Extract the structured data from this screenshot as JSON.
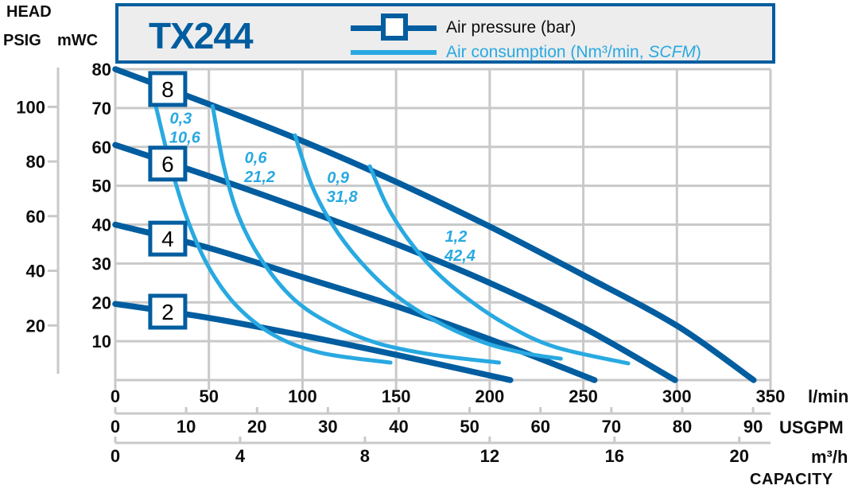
{
  "header": {
    "head": "HEAD",
    "psig": "PSIG",
    "mwc": "mWC"
  },
  "legend": {
    "model": "TX244",
    "pressure_label": "Air pressure (bar)",
    "consumption_pre": "Air consumption (Nm³/min, ",
    "consumption_italic": "SCFM",
    "consumption_post": ")"
  },
  "capacity_axis": {
    "lmin_unit": "l/min",
    "usgpm_unit": "USGPM",
    "m3h_unit": "m³/h",
    "title": "CAPACITY"
  },
  "colors": {
    "dark_blue": "#005d9f",
    "light_blue": "#29a9e1",
    "grid": "#c9c9c9",
    "text": "#0d0d0d",
    "legend_bg": "#ededed"
  },
  "chart_data": {
    "type": "line",
    "title": "TX244",
    "xlabel": "CAPACITY",
    "ylabel": "HEAD",
    "axis": {
      "xlim_lmin": [
        0,
        350
      ],
      "ylim_mwc": [
        0,
        80
      ],
      "lmin_ticks": [
        0,
        50,
        100,
        150,
        200,
        250,
        300,
        350
      ],
      "usgpm_ticks": [
        0,
        10,
        20,
        30,
        40,
        50,
        60,
        70,
        80,
        90
      ],
      "m3h_ticks": [
        0,
        4,
        8,
        12,
        16,
        20
      ],
      "mwc_ticks": [
        80,
        70,
        60,
        50,
        40,
        30,
        20,
        10
      ],
      "psig_ticks": [
        100,
        80,
        60,
        40,
        20
      ],
      "grid": true
    },
    "pressure_series": [
      {
        "bar": 8,
        "label": "8",
        "box_pos": [
          28,
          74.9
        ],
        "points": [
          [
            0,
            80
          ],
          [
            50,
            71
          ],
          [
            100,
            61.5
          ],
          [
            150,
            51
          ],
          [
            200,
            39.5
          ],
          [
            250,
            27
          ],
          [
            300,
            14
          ],
          [
            341,
            0
          ]
        ]
      },
      {
        "bar": 6,
        "label": "6",
        "box_pos": [
          28,
          55.7
        ],
        "points": [
          [
            0,
            60.5
          ],
          [
            50,
            52.5
          ],
          [
            100,
            44
          ],
          [
            150,
            35
          ],
          [
            200,
            25
          ],
          [
            250,
            13.5
          ],
          [
            299,
            0
          ]
        ]
      },
      {
        "bar": 4,
        "label": "4",
        "box_pos": [
          28,
          36.4
        ],
        "points": [
          [
            0,
            40
          ],
          [
            50,
            34
          ],
          [
            100,
            26.5
          ],
          [
            150,
            19
          ],
          [
            200,
            10.5
          ],
          [
            256,
            0
          ]
        ]
      },
      {
        "bar": 2,
        "label": "2",
        "box_pos": [
          28,
          17.6
        ],
        "points": [
          [
            0,
            19.6
          ],
          [
            50,
            16
          ],
          [
            100,
            11.5
          ],
          [
            150,
            6.5
          ],
          [
            211,
            0
          ]
        ]
      }
    ],
    "consumption_series": [
      {
        "nm3min": "0,3",
        "scfm": "10,6",
        "label_pos": [
          35,
          65
        ],
        "points": [
          [
            19,
            76
          ],
          [
            28,
            58
          ],
          [
            38,
            42
          ],
          [
            50,
            29
          ],
          [
            65,
            19
          ],
          [
            85,
            11.5
          ],
          [
            110,
            7
          ],
          [
            147,
            4.5
          ]
        ]
      },
      {
        "nm3min": "0,6",
        "scfm": "21,2",
        "label_pos": [
          75,
          54.8
        ],
        "points": [
          [
            52,
            70.5
          ],
          [
            58,
            55
          ],
          [
            66,
            42
          ],
          [
            78,
            31
          ],
          [
            95,
            21
          ],
          [
            115,
            14.5
          ],
          [
            140,
            9.5
          ],
          [
            170,
            6.5
          ],
          [
            205,
            4.5
          ]
        ]
      },
      {
        "nm3min": "0,9",
        "scfm": "31,8",
        "label_pos": [
          119,
          49.7
        ],
        "points": [
          [
            96,
            63
          ],
          [
            105,
            50
          ],
          [
            116,
            40
          ],
          [
            130,
            31
          ],
          [
            148,
            22.5
          ],
          [
            170,
            15.5
          ],
          [
            195,
            10
          ],
          [
            218,
            7
          ],
          [
            238,
            5.5
          ]
        ]
      },
      {
        "nm3min": "1,2",
        "scfm": "42,4",
        "label_pos": [
          182,
          34.6
        ],
        "points": [
          [
            136,
            55
          ],
          [
            145,
            45
          ],
          [
            156,
            36.5
          ],
          [
            170,
            28.5
          ],
          [
            188,
            21
          ],
          [
            210,
            14
          ],
          [
            235,
            8.5
          ],
          [
            274,
            4.3
          ]
        ]
      }
    ]
  }
}
